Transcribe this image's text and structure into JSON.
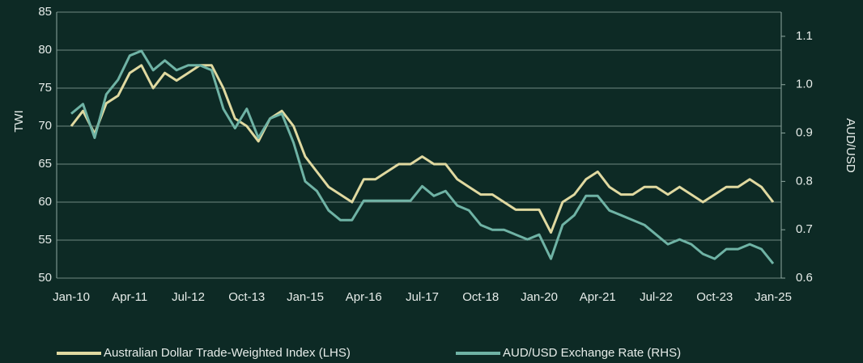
{
  "chart_data": {
    "type": "line",
    "categories": [
      "Jan-10",
      null,
      null,
      null,
      null,
      "Apr-11",
      null,
      null,
      null,
      null,
      "Jul-12",
      null,
      null,
      null,
      null,
      "Oct-13",
      null,
      null,
      null,
      null,
      "Jan-15",
      null,
      null,
      null,
      null,
      "Apr-16",
      null,
      null,
      null,
      null,
      "Jul-17",
      null,
      null,
      null,
      null,
      "Oct-18",
      null,
      null,
      null,
      null,
      "Jan-20",
      null,
      null,
      null,
      null,
      "Apr-21",
      null,
      null,
      null,
      null,
      "Jul-22",
      null,
      null,
      null,
      null,
      "Oct-23",
      null,
      null,
      null,
      null,
      "Jan-25"
    ],
    "series": [
      {
        "name": "Australian Dollar Trade-Weighted Index (LHS)",
        "color": "#e0d9a0",
        "axis": "y",
        "values": [
          70,
          72,
          69,
          73,
          74,
          77,
          78,
          75,
          77,
          76,
          77,
          78,
          78,
          75,
          71,
          70,
          68,
          71,
          72,
          70,
          66,
          64,
          62,
          61,
          60,
          63,
          63,
          64,
          65,
          65,
          66,
          65,
          65,
          63,
          62,
          61,
          61,
          60,
          59,
          59,
          59,
          56,
          60,
          61,
          63,
          64,
          62,
          61,
          61,
          62,
          62,
          61,
          62,
          61,
          60,
          61,
          62,
          62,
          63,
          62,
          60
        ]
      },
      {
        "name": "AUD/USD Exchange Rate (RHS)",
        "color": "#6fb3a5",
        "axis": "y2",
        "values": [
          0.94,
          0.96,
          0.89,
          0.98,
          1.01,
          1.06,
          1.07,
          1.03,
          1.05,
          1.03,
          1.04,
          1.04,
          1.03,
          0.95,
          0.91,
          0.95,
          0.89,
          0.93,
          0.94,
          0.88,
          0.8,
          0.78,
          0.74,
          0.72,
          0.72,
          0.76,
          0.76,
          0.76,
          0.76,
          0.76,
          0.79,
          0.77,
          0.78,
          0.75,
          0.74,
          0.71,
          0.7,
          0.7,
          0.69,
          0.68,
          0.69,
          0.64,
          0.71,
          0.73,
          0.77,
          0.77,
          0.74,
          0.73,
          0.72,
          0.71,
          0.69,
          0.67,
          0.68,
          0.67,
          0.65,
          0.64,
          0.66,
          0.66,
          0.67,
          0.66,
          0.63
        ]
      }
    ],
    "ylabel": "TWI",
    "y2label": "AUD/USD",
    "ylim": [
      50,
      85
    ],
    "yticks": [
      50,
      55,
      60,
      65,
      70,
      75,
      80,
      85
    ],
    "y2lim": [
      0.6,
      1.15
    ],
    "y2ticks": [
      0.6,
      0.7,
      0.8,
      0.9,
      {
        "value": 1,
        "label": "1.0"
      },
      1.1
    ],
    "grid": true
  }
}
